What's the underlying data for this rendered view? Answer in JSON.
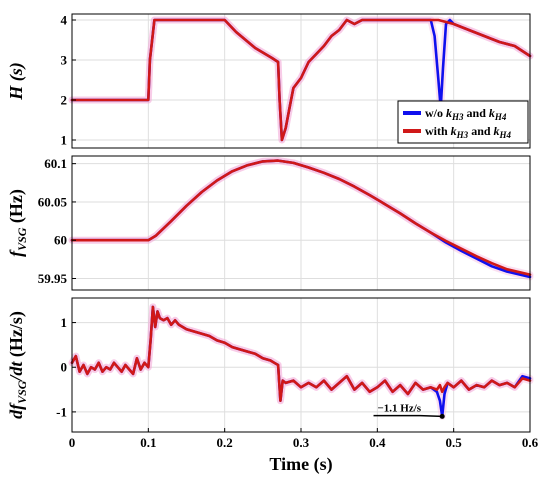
{
  "chart_data": [
    {
      "type": "line",
      "ylabel": "H (s)",
      "ylim": [
        0.8,
        4.15
      ],
      "yticks": [
        1,
        2,
        3,
        4
      ],
      "xlim": [
        0,
        0.6
      ],
      "grid": true,
      "legend": {
        "placement": "bottom-right",
        "entries": [
          {
            "prefix": "w/o ",
            "k1_base": "k",
            "k1_sub": "H3",
            "join": " and ",
            "k2_base": "k",
            "k2_sub": "H4"
          },
          {
            "prefix": "with ",
            "k1_base": "k",
            "k1_sub": "H3",
            "join": " and ",
            "k2_base": "k",
            "k2_sub": "H4"
          }
        ]
      },
      "series": [
        {
          "color": "#1010ee",
          "x": [
            0,
            0.1,
            0.102,
            0.108,
            0.2,
            0.215,
            0.24,
            0.262,
            0.27,
            0.272,
            0.275,
            0.28,
            0.285,
            0.29,
            0.3,
            0.31,
            0.32,
            0.33,
            0.34,
            0.35,
            0.36,
            0.37,
            0.38,
            0.46,
            0.47,
            0.475,
            0.48,
            0.483,
            0.486,
            0.49,
            0.495,
            0.5,
            0.52,
            0.54,
            0.56,
            0.58,
            0.6
          ],
          "y": [
            2.0,
            2.0,
            3.0,
            4.0,
            4.0,
            3.7,
            3.3,
            3.05,
            2.95,
            2.0,
            1.0,
            1.3,
            1.8,
            2.3,
            2.55,
            2.95,
            3.15,
            3.35,
            3.6,
            3.75,
            4.0,
            3.9,
            4.0,
            4.0,
            4.0,
            3.6,
            2.5,
            1.8,
            2.8,
            3.9,
            4.0,
            3.9,
            3.75,
            3.6,
            3.45,
            3.35,
            3.1
          ]
        },
        {
          "color": "#d01818",
          "x": [
            0,
            0.1,
            0.102,
            0.108,
            0.2,
            0.215,
            0.24,
            0.262,
            0.27,
            0.272,
            0.275,
            0.28,
            0.285,
            0.29,
            0.3,
            0.31,
            0.32,
            0.33,
            0.34,
            0.35,
            0.36,
            0.37,
            0.38,
            0.4,
            0.48,
            0.5,
            0.52,
            0.54,
            0.56,
            0.58,
            0.6
          ],
          "y": [
            2.0,
            2.0,
            3.0,
            4.0,
            4.0,
            3.7,
            3.3,
            3.05,
            2.95,
            2.0,
            1.0,
            1.3,
            1.8,
            2.3,
            2.55,
            2.95,
            3.15,
            3.35,
            3.6,
            3.75,
            4.0,
            3.9,
            4.0,
            4.0,
            4.0,
            3.9,
            3.75,
            3.6,
            3.45,
            3.35,
            3.1
          ]
        }
      ]
    },
    {
      "type": "line",
      "ylabel_base": "f",
      "ylabel_sub": "VSG",
      "ylabel_unit": " (Hz)",
      "ylim": [
        59.935,
        60.11
      ],
      "yticks": [
        59.95,
        60,
        60.05,
        60.1
      ],
      "ytick_labels": [
        "59.95",
        "60",
        "60.05",
        "60.1"
      ],
      "xlim": [
        0,
        0.6
      ],
      "grid": true,
      "series": [
        {
          "color": "#1010ee",
          "x": [
            0,
            0.1,
            0.11,
            0.13,
            0.15,
            0.17,
            0.19,
            0.21,
            0.23,
            0.25,
            0.27,
            0.29,
            0.31,
            0.33,
            0.35,
            0.37,
            0.39,
            0.41,
            0.43,
            0.45,
            0.47,
            0.49,
            0.51,
            0.53,
            0.55,
            0.57,
            0.6
          ],
          "y": [
            60.0,
            60.0,
            60.006,
            60.025,
            60.045,
            60.063,
            60.078,
            60.09,
            60.098,
            60.103,
            60.104,
            60.101,
            60.095,
            60.088,
            60.08,
            60.07,
            60.059,
            60.047,
            60.035,
            60.022,
            60.01,
            59.997,
            59.986,
            59.976,
            59.966,
            59.959,
            59.952
          ]
        },
        {
          "color": "#d01818",
          "x": [
            0,
            0.1,
            0.11,
            0.13,
            0.15,
            0.17,
            0.19,
            0.21,
            0.23,
            0.25,
            0.27,
            0.29,
            0.31,
            0.33,
            0.35,
            0.37,
            0.39,
            0.41,
            0.43,
            0.45,
            0.47,
            0.49,
            0.51,
            0.53,
            0.55,
            0.57,
            0.6
          ],
          "y": [
            60.0,
            60.0,
            60.006,
            60.025,
            60.045,
            60.063,
            60.078,
            60.09,
            60.098,
            60.103,
            60.104,
            60.101,
            60.095,
            60.088,
            60.08,
            60.07,
            60.059,
            60.047,
            60.035,
            60.022,
            60.01,
            59.999,
            59.989,
            59.979,
            59.97,
            59.962,
            59.955
          ]
        }
      ]
    },
    {
      "type": "line",
      "ylabel_pre": "df",
      "ylabel_sub": "VSG",
      "ylabel_post": "/dt",
      "ylabel_unit": " (Hz/s)",
      "ylim": [
        -1.45,
        1.55
      ],
      "yticks": [
        -1,
        0,
        1
      ],
      "ytick_labels": [
        "-1",
        "0",
        "1"
      ],
      "xlim": [
        0,
        0.6
      ],
      "xticks": [
        0,
        0.1,
        0.2,
        0.3,
        0.4,
        0.5,
        0.6
      ],
      "xtick_labels": [
        "0",
        "0.1",
        "0.2",
        "0.3",
        "0.4",
        "0.5",
        "0.6"
      ],
      "xlabel": "Time (s)",
      "grid": true,
      "annotation": {
        "text": "−1.1 Hz/s",
        "x": 0.485,
        "y": -1.1,
        "label_x": 0.395,
        "label_y": -0.95
      },
      "series": [
        {
          "color": "#1010ee",
          "x": [
            0,
            0.005,
            0.01,
            0.015,
            0.02,
            0.025,
            0.03,
            0.035,
            0.04,
            0.045,
            0.05,
            0.055,
            0.06,
            0.065,
            0.07,
            0.075,
            0.08,
            0.085,
            0.09,
            0.095,
            0.1,
            0.103,
            0.106,
            0.109,
            0.112,
            0.115,
            0.12,
            0.125,
            0.13,
            0.135,
            0.14,
            0.15,
            0.16,
            0.17,
            0.18,
            0.19,
            0.2,
            0.21,
            0.22,
            0.23,
            0.24,
            0.25,
            0.26,
            0.265,
            0.27,
            0.273,
            0.276,
            0.28,
            0.29,
            0.3,
            0.31,
            0.32,
            0.33,
            0.34,
            0.35,
            0.36,
            0.37,
            0.38,
            0.39,
            0.4,
            0.41,
            0.42,
            0.43,
            0.44,
            0.45,
            0.46,
            0.47,
            0.478,
            0.482,
            0.485,
            0.488,
            0.492,
            0.5,
            0.51,
            0.52,
            0.53,
            0.54,
            0.55,
            0.56,
            0.57,
            0.58,
            0.59,
            0.6
          ],
          "y": [
            0.1,
            0.25,
            -0.1,
            0.05,
            -0.15,
            0.0,
            -0.05,
            0.1,
            -0.1,
            0.0,
            -0.05,
            0.1,
            0.0,
            -0.1,
            0.05,
            -0.05,
            -0.15,
            0.2,
            -0.05,
            0.1,
            0.0,
            0.6,
            1.35,
            0.9,
            1.25,
            1.1,
            1.05,
            1.1,
            0.95,
            1.05,
            0.95,
            0.85,
            0.8,
            0.75,
            0.7,
            0.6,
            0.55,
            0.45,
            0.4,
            0.35,
            0.3,
            0.2,
            0.15,
            0.1,
            0.05,
            -0.75,
            -0.3,
            -0.35,
            -0.3,
            -0.45,
            -0.35,
            -0.45,
            -0.3,
            -0.5,
            -0.35,
            -0.2,
            -0.5,
            -0.35,
            -0.55,
            -0.45,
            -0.3,
            -0.55,
            -0.4,
            -0.6,
            -0.35,
            -0.5,
            -0.45,
            -0.55,
            -0.75,
            -1.1,
            -0.6,
            -0.35,
            -0.45,
            -0.3,
            -0.5,
            -0.4,
            -0.45,
            -0.3,
            -0.4,
            -0.35,
            -0.45,
            -0.2,
            -0.25
          ]
        },
        {
          "color": "#d01818",
          "x": [
            0,
            0.005,
            0.01,
            0.015,
            0.02,
            0.025,
            0.03,
            0.035,
            0.04,
            0.045,
            0.05,
            0.055,
            0.06,
            0.065,
            0.07,
            0.075,
            0.08,
            0.085,
            0.09,
            0.095,
            0.1,
            0.103,
            0.106,
            0.109,
            0.112,
            0.115,
            0.12,
            0.125,
            0.13,
            0.135,
            0.14,
            0.15,
            0.16,
            0.17,
            0.18,
            0.19,
            0.2,
            0.21,
            0.22,
            0.23,
            0.24,
            0.25,
            0.26,
            0.265,
            0.27,
            0.273,
            0.276,
            0.28,
            0.29,
            0.3,
            0.31,
            0.32,
            0.33,
            0.34,
            0.35,
            0.36,
            0.37,
            0.38,
            0.39,
            0.4,
            0.41,
            0.42,
            0.43,
            0.44,
            0.45,
            0.46,
            0.47,
            0.478,
            0.482,
            0.485,
            0.488,
            0.492,
            0.5,
            0.51,
            0.52,
            0.53,
            0.54,
            0.55,
            0.56,
            0.57,
            0.58,
            0.59,
            0.6
          ],
          "y": [
            0.1,
            0.25,
            -0.1,
            0.05,
            -0.15,
            0.0,
            -0.05,
            0.1,
            -0.1,
            0.0,
            -0.05,
            0.1,
            0.0,
            -0.1,
            0.05,
            -0.05,
            -0.15,
            0.2,
            -0.05,
            0.1,
            0.0,
            0.6,
            1.35,
            0.9,
            1.25,
            1.1,
            1.05,
            1.1,
            0.95,
            1.05,
            0.95,
            0.85,
            0.8,
            0.75,
            0.7,
            0.6,
            0.55,
            0.45,
            0.4,
            0.35,
            0.3,
            0.2,
            0.15,
            0.1,
            0.05,
            -0.75,
            -0.3,
            -0.35,
            -0.3,
            -0.45,
            -0.35,
            -0.45,
            -0.3,
            -0.5,
            -0.35,
            -0.2,
            -0.5,
            -0.35,
            -0.55,
            -0.45,
            -0.3,
            -0.55,
            -0.4,
            -0.6,
            -0.35,
            -0.5,
            -0.45,
            -0.5,
            -0.4,
            -0.55,
            -0.45,
            -0.35,
            -0.45,
            -0.3,
            -0.5,
            -0.4,
            -0.45,
            -0.3,
            -0.4,
            -0.35,
            -0.45,
            -0.25,
            -0.3
          ]
        }
      ]
    }
  ]
}
